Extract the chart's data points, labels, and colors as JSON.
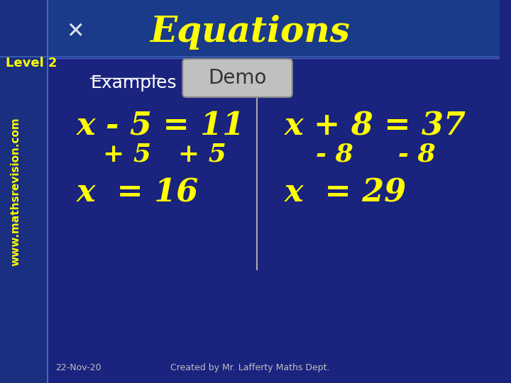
{
  "bg_color": "#1a237e",
  "title": "Equations",
  "title_color": "#ffff00",
  "title_fontsize": 36,
  "level_text": "Level 2",
  "level_color": "#ffff00",
  "level_fontsize": 13,
  "examples_text": "Examples",
  "examples_color": "#ffffff",
  "examples_fontsize": 18,
  "demo_text": "Demo",
  "demo_color": "#333333",
  "demo_bg": "#c0c0c0",
  "demo_fontsize": 20,
  "eq1_line1": "x - 5 = 11",
  "eq1_line2": "+ 5   + 5",
  "eq1_line3": "x  = 16",
  "eq2_line1": "x + 8 = 37",
  "eq2_line2": "- 8     - 8",
  "eq2_line3": "x  = 29",
  "eq_color": "#ffff00",
  "eq_fontsize": 32,
  "eq_sub_fontsize": 26,
  "date_text": "22-Nov-20",
  "credit_text": "Created by Mr. Lafferty Maths Dept.",
  "footer_color": "#c0c0c0",
  "footer_fontsize": 9,
  "separator_color": "#aaaaaa",
  "www_text": "www.mathsrevision.com",
  "www_color": "#ffff00",
  "www_fontsize": 11
}
